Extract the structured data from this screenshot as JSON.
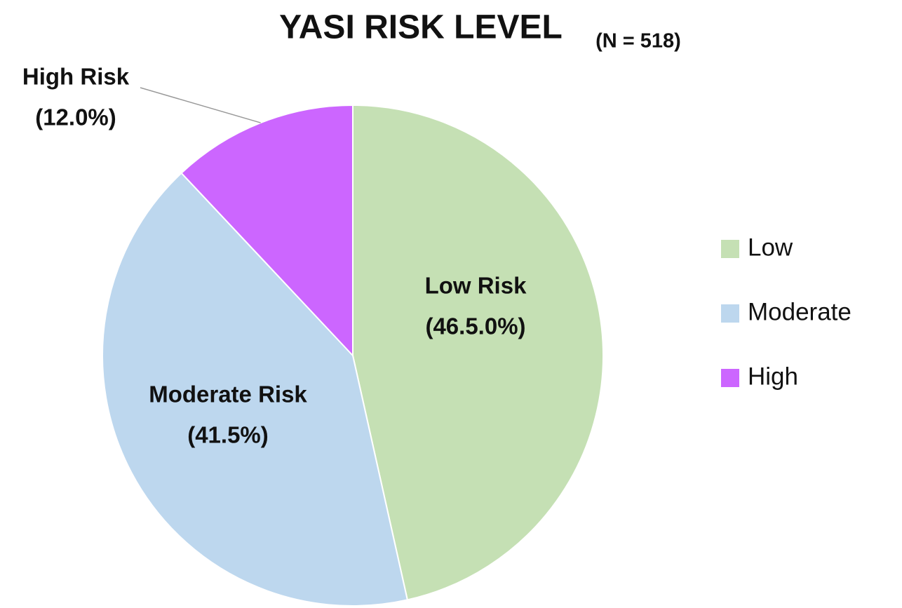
{
  "chart_data": {
    "type": "pie",
    "title": "YASI RISK LEVEL",
    "subtitle": "(N = 518)",
    "categories": [
      "Low",
      "Moderate",
      "High"
    ],
    "values": [
      46.5,
      41.5,
      12.0
    ],
    "label_names": [
      "Low Risk",
      "Moderate Risk",
      "High Risk"
    ],
    "value_labels": [
      "(46.5.0%)",
      "(41.5%)",
      "(12.0%)"
    ],
    "colors": [
      "#c5e0b4",
      "#bdd7ee",
      "#cc66ff"
    ],
    "legend": "right"
  }
}
